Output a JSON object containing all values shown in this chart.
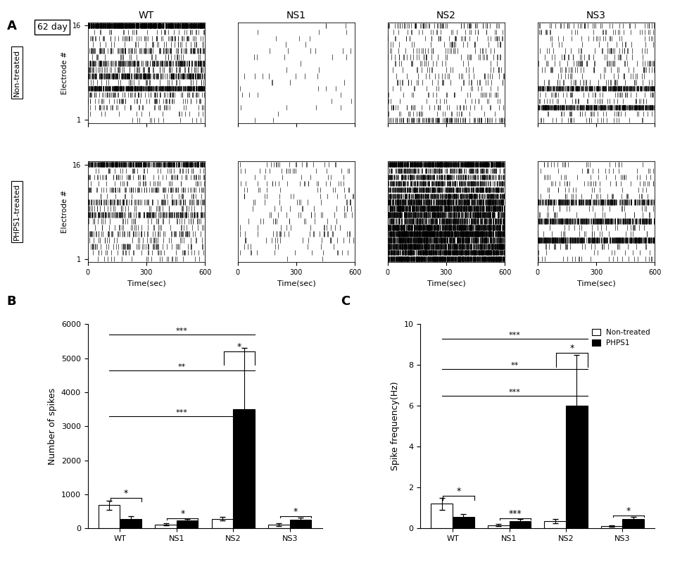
{
  "day_label": "62 day",
  "row_labels": [
    "Non-treated",
    "PHPS1-treated"
  ],
  "col_labels": [
    "WT",
    "NS1",
    "NS2",
    "NS3"
  ],
  "raster_xlabel": "Time(sec)",
  "raster_ylabel": "Electrode #",
  "bar_categories": [
    "WT",
    "NS1",
    "NS2",
    "NS3"
  ],
  "bar_nontreated_mean": [
    680,
    110,
    280,
    110
  ],
  "bar_nontreated_err": [
    130,
    30,
    60,
    40
  ],
  "bar_phps1_mean": [
    280,
    220,
    3500,
    260
  ],
  "bar_phps1_err": [
    80,
    60,
    1800,
    60
  ],
  "bar_ylabel_B": "Number of spikes",
  "bar_ylim_B": [
    0,
    6000
  ],
  "bar_yticks_B": [
    0,
    1000,
    2000,
    3000,
    4000,
    5000,
    6000
  ],
  "freq_nontreated_mean": [
    1.2,
    0.15,
    0.35,
    0.1
  ],
  "freq_nontreated_err": [
    0.3,
    0.05,
    0.1,
    0.04
  ],
  "freq_phps1_mean": [
    0.55,
    0.35,
    6.0,
    0.45
  ],
  "freq_phps1_err": [
    0.15,
    0.1,
    2.5,
    0.12
  ],
  "bar_ylabel_C": "Spike frequency(Hz)",
  "bar_ylim_C": [
    0,
    10
  ],
  "bar_yticks_C": [
    0,
    2,
    4,
    6,
    8,
    10
  ],
  "legend_labels": [
    "Non-treated",
    "PHPS1"
  ],
  "densities_nt_WT": [
    0.02,
    0.04,
    0.06,
    0.08,
    0.15,
    0.8,
    0.07,
    0.5,
    0.12,
    0.35,
    0.06,
    0.2,
    0.06,
    0.09,
    0.04,
    1.4
  ],
  "densities_nt_NS1": [
    0.005,
    0.005,
    0.005,
    0.005,
    0.005,
    0.005,
    0.005,
    0.02,
    0.005,
    0.005,
    0.005,
    0.005,
    0.005,
    0.005,
    0.005,
    0.005
  ],
  "densities_nt_NS2": [
    0.18,
    0.04,
    0.06,
    0.03,
    0.05,
    0.03,
    0.05,
    0.04,
    0.05,
    0.04,
    0.06,
    0.04,
    0.04,
    0.06,
    0.04,
    0.1
  ],
  "densities_nt_NS3": [
    0.04,
    0.06,
    0.7,
    0.05,
    0.05,
    0.55,
    0.05,
    0.04,
    0.04,
    0.07,
    0.04,
    0.05,
    0.04,
    0.04,
    0.05,
    0.07
  ],
  "densities_ph_WT": [
    0.03,
    0.06,
    0.08,
    0.07,
    0.12,
    0.04,
    0.06,
    0.35,
    0.07,
    0.2,
    0.04,
    0.15,
    0.06,
    0.08,
    0.04,
    0.7
  ],
  "densities_ph_NS1": [
    0.01,
    0.02,
    0.02,
    0.03,
    0.04,
    0.02,
    0.02,
    0.03,
    0.02,
    0.03,
    0.02,
    0.02,
    0.02,
    0.02,
    0.02,
    0.02
  ],
  "densities_ph_NS2": [
    1.3,
    1.1,
    0.9,
    1.0,
    1.2,
    1.0,
    0.7,
    0.8,
    0.95,
    0.8,
    0.6,
    0.65,
    0.5,
    0.4,
    0.25,
    1.1
  ],
  "densities_ph_NS3": [
    0.03,
    0.04,
    0.04,
    0.7,
    0.04,
    0.04,
    0.55,
    0.04,
    0.04,
    0.45,
    0.04,
    0.04,
    0.04,
    0.04,
    0.04,
    0.05
  ]
}
